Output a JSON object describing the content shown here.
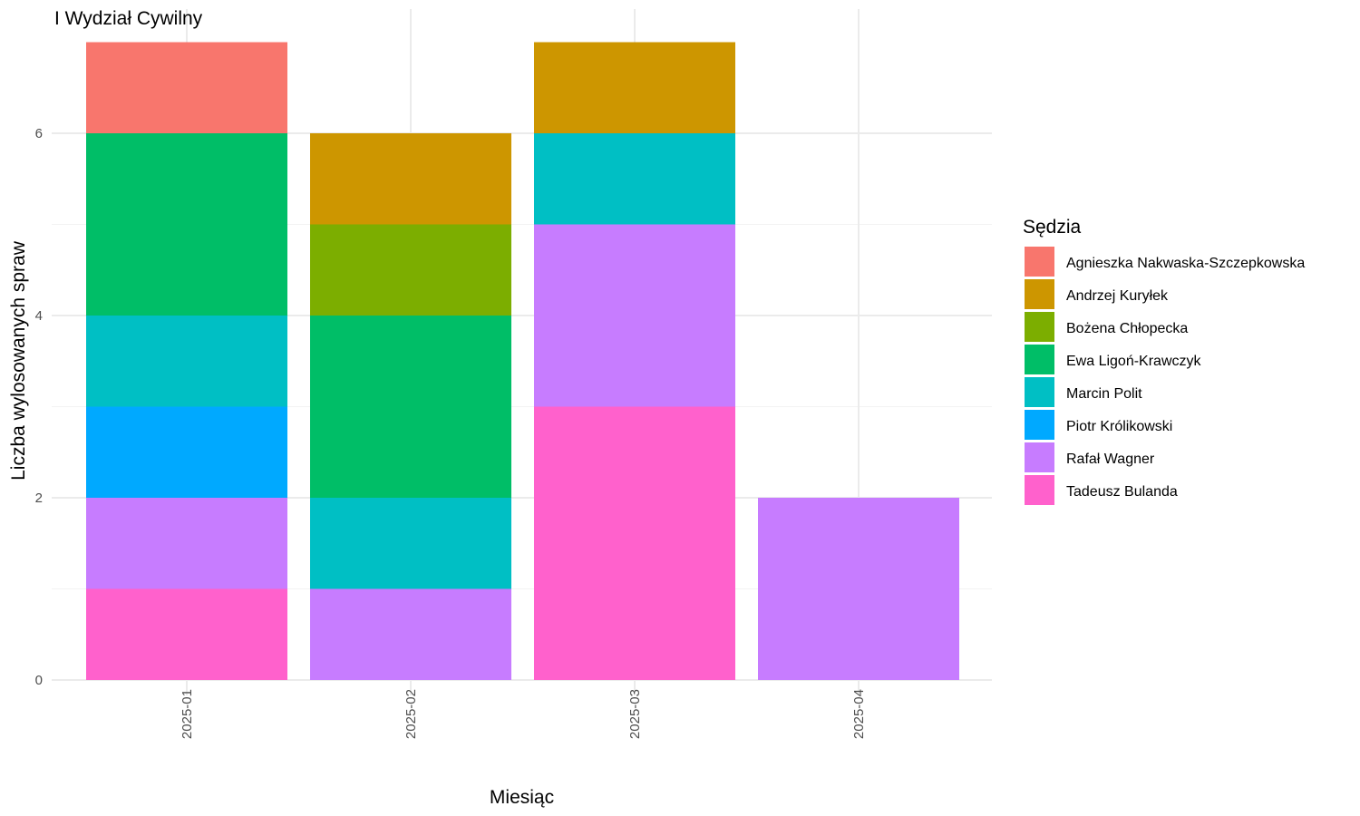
{
  "chart_data": {
    "type": "bar",
    "stacked": true,
    "title": "I Wydział Cywilny",
    "xlabel": "Miesiąc",
    "ylabel": "Liczba wylosowanych spraw",
    "categories": [
      "2025-01",
      "2025-02",
      "2025-03",
      "2025-04"
    ],
    "ylim": [
      0,
      7
    ],
    "yticks": [
      0,
      2,
      4,
      6
    ],
    "grid": true,
    "legend": {
      "title": "Sędzia",
      "position": "right"
    },
    "series": [
      {
        "name": "Agnieszka Nakwaska-Szczepkowska",
        "color": "#F8766D",
        "values": [
          1,
          0,
          0,
          0
        ]
      },
      {
        "name": "Andrzej Kuryłek",
        "color": "#CD9600",
        "values": [
          0,
          1,
          1,
          0
        ]
      },
      {
        "name": "Bożena Chłopecka",
        "color": "#7CAE00",
        "values": [
          0,
          1,
          0,
          0
        ]
      },
      {
        "name": "Ewa Ligoń-Krawczyk",
        "color": "#00BE67",
        "values": [
          2,
          2,
          0,
          0
        ]
      },
      {
        "name": "Marcin Polit",
        "color": "#00BFC4",
        "values": [
          1,
          1,
          1,
          0
        ]
      },
      {
        "name": "Piotr Królikowski",
        "color": "#00A9FF",
        "values": [
          1,
          0,
          0,
          0
        ]
      },
      {
        "name": "Rafał Wagner",
        "color": "#C77CFF",
        "values": [
          1,
          1,
          2,
          2
        ]
      },
      {
        "name": "Tadeusz Bulanda",
        "color": "#FF61CC",
        "values": [
          1,
          0,
          3,
          0
        ]
      }
    ]
  }
}
